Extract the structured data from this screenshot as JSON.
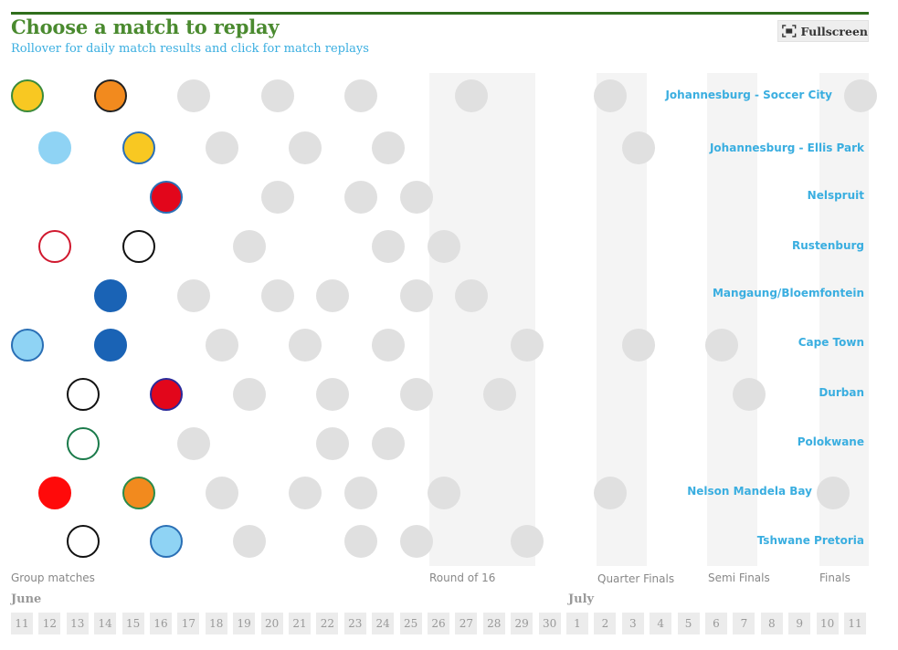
{
  "header": {
    "title": "Choose a match to replay",
    "subtitle": "Rollover for daily match results and  click for match replays",
    "fullscreen_label": "Fullscreen"
  },
  "colors": {
    "title": "#4a8a2f",
    "accent": "#3aaee0",
    "inactive_match": "#e0e0e0",
    "stage_band": "#f4f4f4"
  },
  "venues": [
    "Johannesburg - Soccer City",
    "Johannesburg - Ellis Park",
    "Nelspruit",
    "Rustenburg",
    "Mangaung/Bloemfontein",
    "Cape Town",
    "Durban",
    "Polokwane",
    "Nelson Mandela Bay",
    "Tshwane Pretoria"
  ],
  "stages": {
    "group": "Group matches",
    "round16": "Round of 16",
    "quarter": "Quarter Finals",
    "semi": "Semi Finals",
    "final": "Finals"
  },
  "months": {
    "june": "June",
    "july": "July"
  },
  "days": [
    "11",
    "12",
    "13",
    "14",
    "15",
    "16",
    "17",
    "18",
    "19",
    "20",
    "21",
    "22",
    "23",
    "24",
    "25",
    "26",
    "27",
    "28",
    "29",
    "30",
    "1",
    "2",
    "3",
    "4",
    "5",
    "6",
    "7",
    "8",
    "9",
    "10",
    "11"
  ],
  "matches": [
    {
      "venue": 0,
      "day": 0,
      "fill": "#f8c822",
      "border": "#3a8a3a"
    },
    {
      "venue": 0,
      "day": 3,
      "fill": "#f28a1e",
      "border": "#222222"
    },
    {
      "venue": 0,
      "day": 6
    },
    {
      "venue": 0,
      "day": 9
    },
    {
      "venue": 0,
      "day": 12
    },
    {
      "venue": 0,
      "day": 16
    },
    {
      "venue": 0,
      "day": 21
    },
    {
      "venue": 0,
      "day": 30
    },
    {
      "venue": 1,
      "day": 1,
      "fill": "#8fd3f4",
      "border": "#8fd3f4"
    },
    {
      "venue": 1,
      "day": 4,
      "fill": "#f8c822",
      "border": "#2a6fb5"
    },
    {
      "venue": 1,
      "day": 7
    },
    {
      "venue": 1,
      "day": 10
    },
    {
      "venue": 1,
      "day": 13
    },
    {
      "venue": 1,
      "day": 22
    },
    {
      "venue": 2,
      "day": 5,
      "fill": "#e2061b",
      "border": "#2a6fb5"
    },
    {
      "venue": 2,
      "day": 9
    },
    {
      "venue": 2,
      "day": 12
    },
    {
      "venue": 2,
      "day": 14
    },
    {
      "venue": 3,
      "day": 1,
      "fill": "#ffffff",
      "border": "#d0182e"
    },
    {
      "venue": 3,
      "day": 4,
      "fill": "#ffffff",
      "border": "#111111"
    },
    {
      "venue": 3,
      "day": 8
    },
    {
      "venue": 3,
      "day": 13
    },
    {
      "venue": 3,
      "day": 15
    },
    {
      "venue": 4,
      "day": 3,
      "fill": "#1a63b5",
      "border": "#1a63b5"
    },
    {
      "venue": 4,
      "day": 6
    },
    {
      "venue": 4,
      "day": 9
    },
    {
      "venue": 4,
      "day": 11
    },
    {
      "venue": 4,
      "day": 14
    },
    {
      "venue": 4,
      "day": 16
    },
    {
      "venue": 5,
      "day": 0,
      "fill": "#8fd3f4",
      "border": "#2a6fb5"
    },
    {
      "venue": 5,
      "day": 3,
      "fill": "#1a63b5",
      "border": "#1a63b5"
    },
    {
      "venue": 5,
      "day": 7
    },
    {
      "venue": 5,
      "day": 10
    },
    {
      "venue": 5,
      "day": 13
    },
    {
      "venue": 5,
      "day": 18
    },
    {
      "venue": 5,
      "day": 22
    },
    {
      "venue": 5,
      "day": 25
    },
    {
      "venue": 6,
      "day": 2,
      "fill": "#ffffff",
      "border": "#111111"
    },
    {
      "venue": 6,
      "day": 5,
      "fill": "#e2061b",
      "border": "#2a2a9a"
    },
    {
      "venue": 6,
      "day": 8
    },
    {
      "venue": 6,
      "day": 11
    },
    {
      "venue": 6,
      "day": 14
    },
    {
      "venue": 6,
      "day": 17
    },
    {
      "venue": 6,
      "day": 26
    },
    {
      "venue": 7,
      "day": 2,
      "fill": "#ffffff",
      "border": "#1a7a4a"
    },
    {
      "venue": 7,
      "day": 6
    },
    {
      "venue": 7,
      "day": 11
    },
    {
      "venue": 7,
      "day": 13
    },
    {
      "venue": 8,
      "day": 1,
      "fill": "#ff0a0a",
      "border": "#ff0a0a"
    },
    {
      "venue": 8,
      "day": 4,
      "fill": "#f28a1e",
      "border": "#2a8a4a"
    },
    {
      "venue": 8,
      "day": 7
    },
    {
      "venue": 8,
      "day": 10
    },
    {
      "venue": 8,
      "day": 12
    },
    {
      "venue": 8,
      "day": 15
    },
    {
      "venue": 8,
      "day": 21
    },
    {
      "venue": 8,
      "day": 29
    },
    {
      "venue": 9,
      "day": 2,
      "fill": "#ffffff",
      "border": "#111111"
    },
    {
      "venue": 9,
      "day": 5,
      "fill": "#8fd3f4",
      "border": "#2a6fb5"
    },
    {
      "venue": 9,
      "day": 8
    },
    {
      "venue": 9,
      "day": 12
    },
    {
      "venue": 9,
      "day": 14
    },
    {
      "venue": 9,
      "day": 18
    }
  ]
}
